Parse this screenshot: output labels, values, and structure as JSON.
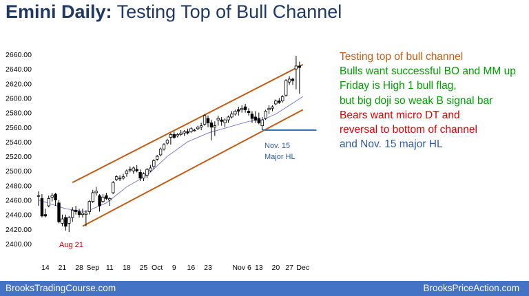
{
  "title": {
    "prefix": "Emini Daily:",
    "text": "Testing Top of Bull Channel"
  },
  "notes": [
    {
      "text": "Testing top of bull channel",
      "color": "#c55a11"
    },
    {
      "text": "Bulls want successful BO and MM up",
      "color": "#00a000"
    },
    {
      "text": "Friday is High 1 bull flag,",
      "color": "#00a000"
    },
    {
      "text": "but big doji so weak B signal bar",
      "color": "#00a000"
    },
    {
      "text": "Bears want micro DT and",
      "color": "#e00000"
    },
    {
      "text": "reversal to bottom of channel",
      "color": "#e00000"
    },
    {
      "text": "and Nov. 15 major HL",
      "color": "#2e5aa8"
    }
  ],
  "annotations": {
    "aug21": "Aug 21",
    "nov15_line1": "Nov. 15",
    "nov15_line2": "Major HL"
  },
  "footer": {
    "left": "BrooksTradingCourse.com",
    "right": "BrooksPriceAction.com",
    "bg_color": "#4472c4"
  },
  "colors": {
    "channel": "#c55a11",
    "ema": "#7b7fd8",
    "support": "#2e75b6",
    "bull_body": "#ffffff",
    "bear_body": "#000000"
  },
  "chart_data": {
    "type": "candlestick",
    "ylim": [
      2400,
      2660
    ],
    "y_ticks": [
      "2400.00",
      "2420.00",
      "2440.00",
      "2460.00",
      "2480.00",
      "2500.00",
      "2520.00",
      "2540.00",
      "2560.00",
      "2580.00",
      "2600.00",
      "2620.00",
      "2640.00",
      "2660.00"
    ],
    "x_ticks": [
      {
        "label": "14",
        "bar": 2
      },
      {
        "label": "21",
        "bar": 7
      },
      {
        "label": "28",
        "bar": 12
      },
      {
        "label": "Sep",
        "bar": 16
      },
      {
        "label": "11",
        "bar": 21
      },
      {
        "label": "18",
        "bar": 26
      },
      {
        "label": "25",
        "bar": 31
      },
      {
        "label": "Oct",
        "bar": 35
      },
      {
        "label": "9",
        "bar": 40
      },
      {
        "label": "16",
        "bar": 45
      },
      {
        "label": "23",
        "bar": 50
      },
      {
        "label": "Nov 6",
        "bar": 60
      },
      {
        "label": "13",
        "bar": 65
      },
      {
        "label": "20",
        "bar": 70
      },
      {
        "label": "27",
        "bar": 74
      },
      {
        "label": "Dec",
        "bar": 78
      }
    ],
    "candles": [
      {
        "o": 2466,
        "h": 2472,
        "l": 2452,
        "c": 2466
      },
      {
        "o": 2462,
        "h": 2468,
        "l": 2436,
        "c": 2438
      },
      {
        "o": 2440,
        "h": 2448,
        "l": 2436,
        "c": 2438
      },
      {
        "o": 2452,
        "h": 2466,
        "l": 2450,
        "c": 2462
      },
      {
        "o": 2464,
        "h": 2470,
        "l": 2458,
        "c": 2466
      },
      {
        "o": 2468,
        "h": 2470,
        "l": 2452,
        "c": 2460
      },
      {
        "o": 2456,
        "h": 2460,
        "l": 2428,
        "c": 2430
      },
      {
        "o": 2428,
        "h": 2440,
        "l": 2424,
        "c": 2434
      },
      {
        "o": 2436,
        "h": 2440,
        "l": 2418,
        "c": 2424
      },
      {
        "o": 2428,
        "h": 2438,
        "l": 2416,
        "c": 2436
      },
      {
        "o": 2436,
        "h": 2450,
        "l": 2430,
        "c": 2446
      },
      {
        "o": 2446,
        "h": 2452,
        "l": 2440,
        "c": 2444
      },
      {
        "o": 2444,
        "h": 2448,
        "l": 2436,
        "c": 2440
      },
      {
        "o": 2440,
        "h": 2448,
        "l": 2436,
        "c": 2442
      },
      {
        "o": 2440,
        "h": 2446,
        "l": 2424,
        "c": 2442
      },
      {
        "o": 2444,
        "h": 2460,
        "l": 2440,
        "c": 2458
      },
      {
        "o": 2458,
        "h": 2474,
        "l": 2456,
        "c": 2470
      },
      {
        "o": 2470,
        "h": 2478,
        "l": 2466,
        "c": 2472
      },
      {
        "o": 2466,
        "h": 2468,
        "l": 2444,
        "c": 2452
      },
      {
        "o": 2458,
        "h": 2468,
        "l": 2456,
        "c": 2464
      },
      {
        "o": 2466,
        "h": 2470,
        "l": 2460,
        "c": 2462
      },
      {
        "o": 2460,
        "h": 2464,
        "l": 2452,
        "c": 2462
      },
      {
        "o": 2470,
        "h": 2486,
        "l": 2468,
        "c": 2484
      },
      {
        "o": 2488,
        "h": 2494,
        "l": 2486,
        "c": 2492
      },
      {
        "o": 2490,
        "h": 2494,
        "l": 2486,
        "c": 2490
      },
      {
        "o": 2490,
        "h": 2496,
        "l": 2488,
        "c": 2492
      },
      {
        "o": 2496,
        "h": 2502,
        "l": 2492,
        "c": 2500
      },
      {
        "o": 2502,
        "h": 2506,
        "l": 2498,
        "c": 2502
      },
      {
        "o": 2500,
        "h": 2506,
        "l": 2496,
        "c": 2504
      },
      {
        "o": 2502,
        "h": 2508,
        "l": 2498,
        "c": 2500
      },
      {
        "o": 2498,
        "h": 2502,
        "l": 2486,
        "c": 2490
      },
      {
        "o": 2490,
        "h": 2498,
        "l": 2486,
        "c": 2496
      },
      {
        "o": 2494,
        "h": 2504,
        "l": 2490,
        "c": 2502
      },
      {
        "o": 2500,
        "h": 2508,
        "l": 2498,
        "c": 2504
      },
      {
        "o": 2506,
        "h": 2516,
        "l": 2502,
        "c": 2514
      },
      {
        "o": 2516,
        "h": 2522,
        "l": 2514,
        "c": 2520
      },
      {
        "o": 2522,
        "h": 2532,
        "l": 2520,
        "c": 2530
      },
      {
        "o": 2530,
        "h": 2538,
        "l": 2528,
        "c": 2536
      },
      {
        "o": 2538,
        "h": 2544,
        "l": 2536,
        "c": 2542
      },
      {
        "o": 2546,
        "h": 2552,
        "l": 2536,
        "c": 2550
      },
      {
        "o": 2550,
        "h": 2554,
        "l": 2544,
        "c": 2546
      },
      {
        "o": 2548,
        "h": 2552,
        "l": 2546,
        "c": 2550
      },
      {
        "o": 2550,
        "h": 2556,
        "l": 2548,
        "c": 2552
      },
      {
        "o": 2552,
        "h": 2556,
        "l": 2548,
        "c": 2554
      },
      {
        "o": 2554,
        "h": 2558,
        "l": 2550,
        "c": 2552
      },
      {
        "o": 2554,
        "h": 2560,
        "l": 2552,
        "c": 2558
      },
      {
        "o": 2556,
        "h": 2558,
        "l": 2554,
        "c": 2556
      },
      {
        "o": 2558,
        "h": 2562,
        "l": 2556,
        "c": 2560
      },
      {
        "o": 2560,
        "h": 2566,
        "l": 2556,
        "c": 2562
      },
      {
        "o": 2564,
        "h": 2578,
        "l": 2562,
        "c": 2576
      },
      {
        "o": 2572,
        "h": 2576,
        "l": 2560,
        "c": 2566
      },
      {
        "o": 2566,
        "h": 2570,
        "l": 2542,
        "c": 2560
      },
      {
        "o": 2560,
        "h": 2568,
        "l": 2548,
        "c": 2562
      },
      {
        "o": 2570,
        "h": 2576,
        "l": 2562,
        "c": 2572
      },
      {
        "o": 2570,
        "h": 2574,
        "l": 2562,
        "c": 2568
      },
      {
        "o": 2566,
        "h": 2572,
        "l": 2560,
        "c": 2570
      },
      {
        "o": 2570,
        "h": 2576,
        "l": 2566,
        "c": 2574
      },
      {
        "o": 2574,
        "h": 2582,
        "l": 2572,
        "c": 2578
      },
      {
        "o": 2578,
        "h": 2584,
        "l": 2576,
        "c": 2582
      },
      {
        "o": 2584,
        "h": 2588,
        "l": 2576,
        "c": 2582
      },
      {
        "o": 2584,
        "h": 2590,
        "l": 2580,
        "c": 2586
      },
      {
        "o": 2588,
        "h": 2592,
        "l": 2580,
        "c": 2584
      },
      {
        "o": 2582,
        "h": 2586,
        "l": 2576,
        "c": 2580
      },
      {
        "o": 2578,
        "h": 2582,
        "l": 2566,
        "c": 2572
      },
      {
        "o": 2574,
        "h": 2582,
        "l": 2566,
        "c": 2570
      },
      {
        "o": 2572,
        "h": 2580,
        "l": 2564,
        "c": 2566
      },
      {
        "o": 2562,
        "h": 2574,
        "l": 2556,
        "c": 2570
      },
      {
        "o": 2572,
        "h": 2584,
        "l": 2570,
        "c": 2582
      },
      {
        "o": 2584,
        "h": 2590,
        "l": 2578,
        "c": 2586
      },
      {
        "o": 2586,
        "h": 2590,
        "l": 2582,
        "c": 2588
      },
      {
        "o": 2592,
        "h": 2598,
        "l": 2590,
        "c": 2596
      },
      {
        "o": 2596,
        "h": 2600,
        "l": 2592,
        "c": 2594
      },
      {
        "o": 2596,
        "h": 2604,
        "l": 2594,
        "c": 2602
      },
      {
        "o": 2604,
        "h": 2626,
        "l": 2602,
        "c": 2624
      },
      {
        "o": 2622,
        "h": 2630,
        "l": 2618,
        "c": 2626
      },
      {
        "o": 2626,
        "h": 2628,
        "l": 2618,
        "c": 2624
      },
      {
        "o": 2640,
        "h": 2658,
        "l": 2612,
        "c": 2644
      },
      {
        "o": 2644,
        "h": 2650,
        "l": 2606,
        "c": 2642
      }
    ],
    "ema20": [
      {
        "bar": 0,
        "v": 2460
      },
      {
        "bar": 8,
        "v": 2448
      },
      {
        "bar": 14,
        "v": 2444
      },
      {
        "bar": 20,
        "v": 2456
      },
      {
        "bar": 26,
        "v": 2478
      },
      {
        "bar": 32,
        "v": 2494
      },
      {
        "bar": 38,
        "v": 2520
      },
      {
        "bar": 44,
        "v": 2540
      },
      {
        "bar": 50,
        "v": 2552
      },
      {
        "bar": 56,
        "v": 2560
      },
      {
        "bar": 62,
        "v": 2568
      },
      {
        "bar": 66,
        "v": 2570
      },
      {
        "bar": 70,
        "v": 2578
      },
      {
        "bar": 74,
        "v": 2590
      },
      {
        "bar": 78,
        "v": 2602
      }
    ],
    "channel_top": [
      {
        "bar": 10,
        "v": 2484
      },
      {
        "bar": 78,
        "v": 2646
      }
    ],
    "channel_bottom": [
      {
        "bar": 13,
        "v": 2424
      },
      {
        "bar": 78,
        "v": 2584
      }
    ],
    "support_line": {
      "bar_start": 66,
      "bar_end": 82,
      "v": 2556
    }
  }
}
